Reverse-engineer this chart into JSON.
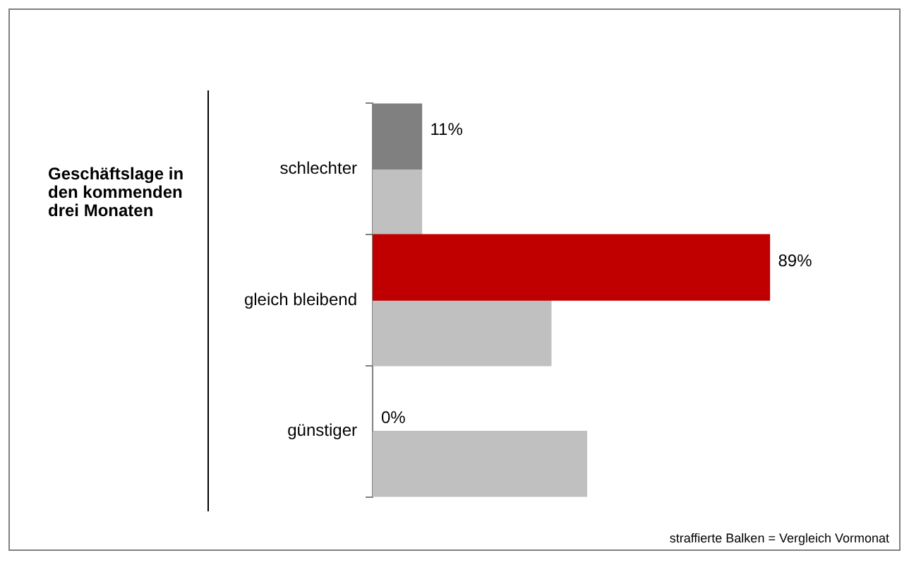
{
  "chart_data": {
    "type": "bar",
    "orientation": "horizontal",
    "title": "Geschäftslage in den kommenden drei Monaten",
    "categories": [
      "schlechter",
      "gleich bleibend",
      "günstiger"
    ],
    "series": [
      {
        "colors": [
          "#808080",
          "#c00000",
          "#808080"
        ],
        "values": [
          11,
          89,
          0
        ],
        "value_labels": [
          "11%",
          "89%",
          "0%"
        ]
      },
      {
        "color": "#c0c0c0",
        "values": [
          11,
          40,
          48
        ]
      }
    ],
    "tick_labels": "y",
    "grid": false,
    "legend": false,
    "annotations": [
      "straffierte Balken = Vergleich Vormonat"
    ]
  }
}
